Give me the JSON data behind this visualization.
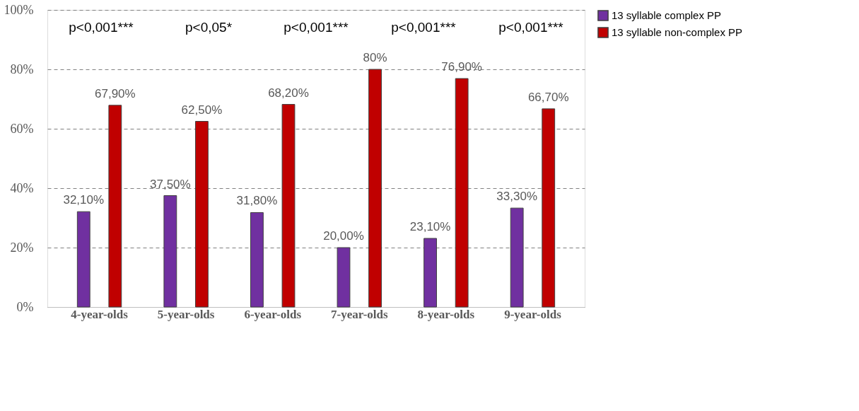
{
  "chart_data": {
    "type": "bar",
    "categories": [
      "4-year-olds",
      "5-year-olds",
      "6-year-olds",
      "7-year-olds",
      "8-year-olds",
      "9-year-olds"
    ],
    "series": [
      {
        "name": "13 syllable complex PP",
        "color": "#7030a0",
        "values": [
          32.1,
          37.5,
          31.8,
          20.0,
          23.1,
          33.3
        ],
        "value_labels": [
          "32,10%",
          "37,50%",
          "31,80%",
          "20,00%",
          "23,10%",
          "33,30%"
        ]
      },
      {
        "name": "13 syllable non-complex PP",
        "color": "#c00000",
        "values": [
          67.9,
          62.5,
          68.2,
          80,
          76.9,
          66.7
        ],
        "value_labels": [
          "67,90%",
          "62,50%",
          "68,20%",
          "80%",
          "76,90%",
          "66,70%"
        ]
      }
    ],
    "ylim": [
      0,
      100
    ],
    "yticks": [
      {
        "value": 0,
        "label": "0%"
      },
      {
        "value": 20,
        "label": "20%"
      },
      {
        "value": 40,
        "label": "40%"
      },
      {
        "value": 60,
        "label": "60%"
      },
      {
        "value": 80,
        "label": "80%"
      },
      {
        "value": 100,
        "label": "100%"
      }
    ],
    "grid": "y",
    "legend": "right",
    "annotations": [
      "p<0,001***",
      "p<0,05*",
      "p<0,001***",
      "p<0,001***",
      "p<0,001***"
    ]
  }
}
